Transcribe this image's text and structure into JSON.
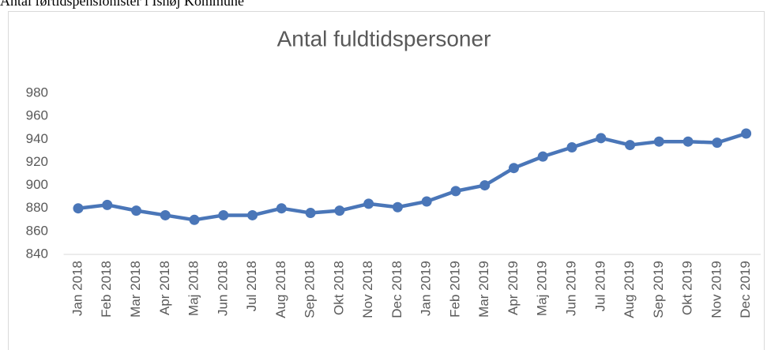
{
  "caption": "Antal førtidspensionister i Ishøj Kommune",
  "chart_data": {
    "type": "line",
    "title": "Antal fuldtidspersoner",
    "categories": [
      "Jan 2018",
      "Feb 2018",
      "Mar 2018",
      "Apr 2018",
      "Maj 2018",
      "Jun 2018",
      "Jul 2018",
      "Aug 2018",
      "Sep 2018",
      "Okt 2018",
      "Nov 2018",
      "Dec 2018",
      "Jan 2019",
      "Feb 2019",
      "Mar 2019",
      "Apr 2019",
      "Maj 2019",
      "Jun 2019",
      "Jul 2019",
      "Aug 2019",
      "Sep 2019",
      "Okt 2019",
      "Nov 2019",
      "Dec 2019"
    ],
    "values": [
      880,
      883,
      878,
      874,
      870,
      874,
      874,
      880,
      876,
      878,
      884,
      881,
      886,
      895,
      900,
      915,
      925,
      933,
      941,
      935,
      938,
      938,
      937,
      945
    ],
    "color": "#4a76b8",
    "ylim": [
      840,
      980
    ],
    "yticks": [
      840,
      860,
      880,
      900,
      920,
      940,
      960,
      980
    ],
    "grid": false
  }
}
